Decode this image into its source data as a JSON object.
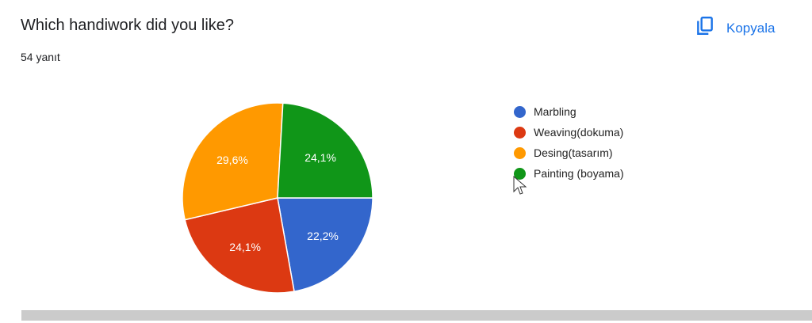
{
  "header": {
    "title": "Which handiwork did you like?",
    "response_count": "54 yanıt",
    "copy_button": {
      "label": "Kopyala",
      "icon": "copy-icon",
      "color": "#1a73e8"
    }
  },
  "chart_data": {
    "type": "pie",
    "title": "Which handiwork did you like?",
    "total_responses": 54,
    "categories": [
      "Marbling",
      "Weaving(dokuma)",
      "Desing(tasarım)",
      "Painting (boyama)"
    ],
    "values": [
      22.2,
      24.1,
      29.6,
      24.1
    ],
    "counts": [
      12,
      13,
      16,
      13
    ],
    "labels": [
      "22,2%",
      "24,1%",
      "29,6%",
      "24,1%"
    ],
    "colors": [
      "#3366cc",
      "#dc3912",
      "#ff9900",
      "#109618"
    ],
    "legend_position": "right"
  },
  "legend": {
    "items": [
      {
        "label": "Marbling",
        "color": "#3366cc"
      },
      {
        "label": "Weaving(dokuma)",
        "color": "#dc3912"
      },
      {
        "label": "Desing(tasarım)",
        "color": "#ff9900"
      },
      {
        "label": "Painting (boyama)",
        "color": "#109618"
      }
    ]
  }
}
